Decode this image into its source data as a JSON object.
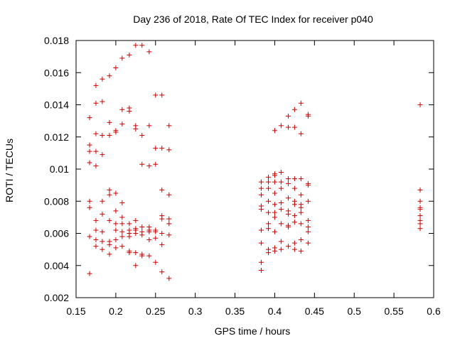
{
  "chart_data": {
    "type": "scatter",
    "title": "Day 236 of 2018, Rate Of TEC Index for receiver p040",
    "xlabel": "GPS time / hours",
    "ylabel": "ROTI / TECUs",
    "xlim": [
      0.15,
      0.6
    ],
    "ylim": [
      0.002,
      0.018
    ],
    "xticks": [
      0.15,
      0.2,
      0.25,
      0.3,
      0.35,
      0.4,
      0.45,
      0.5,
      0.55,
      0.6
    ],
    "xtick_labels": [
      "0.15",
      "0.2",
      "0.25",
      "0.3",
      "0.35",
      "0.4",
      "0.45",
      "0.5",
      "0.55",
      "0.6"
    ],
    "yticks": [
      0.002,
      0.004,
      0.006,
      0.008,
      0.01,
      0.012,
      0.014,
      0.016,
      0.018
    ],
    "ytick_labels": [
      "0.002",
      "0.004",
      "0.006",
      "0.008",
      "0.01",
      "0.012",
      "0.014",
      "0.016",
      "0.018"
    ],
    "marker": "plus",
    "color": "#cc0000",
    "grid": false,
    "series": [
      {
        "name": "ROTI",
        "points": [
          [
            0.167,
            0.0132
          ],
          [
            0.167,
            0.0115
          ],
          [
            0.167,
            0.0111
          ],
          [
            0.167,
            0.0104
          ],
          [
            0.167,
            0.008
          ],
          [
            0.167,
            0.0076
          ],
          [
            0.167,
            0.0058
          ],
          [
            0.167,
            0.0035
          ],
          [
            0.175,
            0.0152
          ],
          [
            0.175,
            0.0141
          ],
          [
            0.175,
            0.0122
          ],
          [
            0.175,
            0.0111
          ],
          [
            0.175,
            0.0102
          ],
          [
            0.175,
            0.0068
          ],
          [
            0.175,
            0.0062
          ],
          [
            0.175,
            0.0056
          ],
          [
            0.175,
            0.0052
          ],
          [
            0.183,
            0.0156
          ],
          [
            0.183,
            0.0142
          ],
          [
            0.183,
            0.0121
          ],
          [
            0.183,
            0.0109
          ],
          [
            0.183,
            0.008
          ],
          [
            0.183,
            0.0072
          ],
          [
            0.183,
            0.0061
          ],
          [
            0.183,
            0.0055
          ],
          [
            0.183,
            0.005
          ],
          [
            0.192,
            0.0158
          ],
          [
            0.192,
            0.0129
          ],
          [
            0.192,
            0.0121
          ],
          [
            0.192,
            0.0087
          ],
          [
            0.192,
            0.0084
          ],
          [
            0.192,
            0.0068
          ],
          [
            0.192,
            0.0055
          ],
          [
            0.192,
            0.0053
          ],
          [
            0.192,
            0.0047
          ],
          [
            0.2,
            0.0163
          ],
          [
            0.2,
            0.0124
          ],
          [
            0.2,
            0.0123
          ],
          [
            0.2,
            0.0085
          ],
          [
            0.2,
            0.0074
          ],
          [
            0.2,
            0.0066
          ],
          [
            0.2,
            0.0062
          ],
          [
            0.2,
            0.0056
          ],
          [
            0.2,
            0.0051
          ],
          [
            0.208,
            0.0169
          ],
          [
            0.208,
            0.0137
          ],
          [
            0.208,
            0.0128
          ],
          [
            0.208,
            0.0079
          ],
          [
            0.208,
            0.007
          ],
          [
            0.208,
            0.0066
          ],
          [
            0.208,
            0.0061
          ],
          [
            0.208,
            0.0058
          ],
          [
            0.208,
            0.0052
          ],
          [
            0.217,
            0.0171
          ],
          [
            0.217,
            0.0138
          ],
          [
            0.217,
            0.0136
          ],
          [
            0.217,
            0.0066
          ],
          [
            0.217,
            0.0062
          ],
          [
            0.217,
            0.006
          ],
          [
            0.217,
            0.0058
          ],
          [
            0.217,
            0.0049
          ],
          [
            0.217,
            0.0048
          ],
          [
            0.225,
            0.0177
          ],
          [
            0.225,
            0.0127
          ],
          [
            0.225,
            0.0125
          ],
          [
            0.225,
            0.0068
          ],
          [
            0.225,
            0.0063
          ],
          [
            0.225,
            0.0062
          ],
          [
            0.225,
            0.006
          ],
          [
            0.225,
            0.0048
          ],
          [
            0.225,
            0.004
          ],
          [
            0.233,
            0.0177
          ],
          [
            0.233,
            0.0121
          ],
          [
            0.233,
            0.0103
          ],
          [
            0.233,
            0.0064
          ],
          [
            0.233,
            0.0061
          ],
          [
            0.233,
            0.0059
          ],
          [
            0.233,
            0.0047
          ],
          [
            0.233,
            0.0046
          ],
          [
            0.242,
            0.0173
          ],
          [
            0.242,
            0.0127
          ],
          [
            0.242,
            0.0102
          ],
          [
            0.242,
            0.0064
          ],
          [
            0.242,
            0.0062
          ],
          [
            0.242,
            0.0061
          ],
          [
            0.242,
            0.0056
          ],
          [
            0.242,
            0.0046
          ],
          [
            0.25,
            0.0146
          ],
          [
            0.25,
            0.0113
          ],
          [
            0.25,
            0.0103
          ],
          [
            0.25,
            0.0062
          ],
          [
            0.25,
            0.0061
          ],
          [
            0.25,
            0.0057
          ],
          [
            0.25,
            0.0042
          ],
          [
            0.258,
            0.0146
          ],
          [
            0.258,
            0.0113
          ],
          [
            0.258,
            0.0087
          ],
          [
            0.258,
            0.0071
          ],
          [
            0.258,
            0.0069
          ],
          [
            0.258,
            0.006
          ],
          [
            0.258,
            0.0053
          ],
          [
            0.258,
            0.0036
          ],
          [
            0.267,
            0.0127
          ],
          [
            0.267,
            0.0112
          ],
          [
            0.267,
            0.0084
          ],
          [
            0.267,
            0.0069
          ],
          [
            0.267,
            0.0066
          ],
          [
            0.267,
            0.0059
          ],
          [
            0.267,
            0.0032
          ],
          [
            0.383,
            0.0092
          ],
          [
            0.383,
            0.0088
          ],
          [
            0.383,
            0.0084
          ],
          [
            0.383,
            0.0077
          ],
          [
            0.383,
            0.0075
          ],
          [
            0.383,
            0.0062
          ],
          [
            0.383,
            0.0054
          ],
          [
            0.383,
            0.0042
          ],
          [
            0.383,
            0.0037
          ],
          [
            0.392,
            0.0095
          ],
          [
            0.392,
            0.0092
          ],
          [
            0.392,
            0.0088
          ],
          [
            0.392,
            0.008
          ],
          [
            0.392,
            0.0073
          ],
          [
            0.392,
            0.0066
          ],
          [
            0.392,
            0.0063
          ],
          [
            0.392,
            0.005
          ],
          [
            0.392,
            0.0048
          ],
          [
            0.4,
            0.0124
          ],
          [
            0.4,
            0.0097
          ],
          [
            0.4,
            0.0096
          ],
          [
            0.4,
            0.0092
          ],
          [
            0.4,
            0.0085
          ],
          [
            0.4,
            0.0078
          ],
          [
            0.4,
            0.0073
          ],
          [
            0.4,
            0.007
          ],
          [
            0.4,
            0.0061
          ],
          [
            0.4,
            0.0051
          ],
          [
            0.4,
            0.0049
          ],
          [
            0.408,
            0.0127
          ],
          [
            0.408,
            0.0098
          ],
          [
            0.408,
            0.0092
          ],
          [
            0.408,
            0.0088
          ],
          [
            0.408,
            0.0079
          ],
          [
            0.408,
            0.0075
          ],
          [
            0.408,
            0.0066
          ],
          [
            0.408,
            0.0055
          ],
          [
            0.408,
            0.005
          ],
          [
            0.417,
            0.0133
          ],
          [
            0.417,
            0.0126
          ],
          [
            0.417,
            0.0094
          ],
          [
            0.417,
            0.0091
          ],
          [
            0.417,
            0.0082
          ],
          [
            0.417,
            0.0074
          ],
          [
            0.417,
            0.0072
          ],
          [
            0.417,
            0.0065
          ],
          [
            0.417,
            0.0064
          ],
          [
            0.417,
            0.0052
          ],
          [
            0.425,
            0.0137
          ],
          [
            0.425,
            0.0126
          ],
          [
            0.425,
            0.0094
          ],
          [
            0.425,
            0.0088
          ],
          [
            0.425,
            0.008
          ],
          [
            0.425,
            0.0078
          ],
          [
            0.425,
            0.0071
          ],
          [
            0.425,
            0.0067
          ],
          [
            0.425,
            0.0054
          ],
          [
            0.425,
            0.005
          ],
          [
            0.433,
            0.0141
          ],
          [
            0.433,
            0.0122
          ],
          [
            0.433,
            0.0094
          ],
          [
            0.433,
            0.0084
          ],
          [
            0.433,
            0.0078
          ],
          [
            0.433,
            0.0076
          ],
          [
            0.433,
            0.0073
          ],
          [
            0.433,
            0.0066
          ],
          [
            0.433,
            0.0056
          ],
          [
            0.433,
            0.0049
          ],
          [
            0.442,
            0.0134
          ],
          [
            0.442,
            0.0133
          ],
          [
            0.442,
            0.0091
          ],
          [
            0.442,
            0.009
          ],
          [
            0.442,
            0.008
          ],
          [
            0.442,
            0.0068
          ],
          [
            0.442,
            0.0064
          ],
          [
            0.442,
            0.0061
          ],
          [
            0.442,
            0.0054
          ],
          [
            0.583,
            0.014
          ],
          [
            0.583,
            0.0087
          ],
          [
            0.583,
            0.008
          ],
          [
            0.583,
            0.0076
          ],
          [
            0.583,
            0.0075
          ],
          [
            0.583,
            0.0071
          ],
          [
            0.583,
            0.0068
          ],
          [
            0.583,
            0.0066
          ],
          [
            0.583,
            0.0063
          ]
        ]
      }
    ]
  }
}
